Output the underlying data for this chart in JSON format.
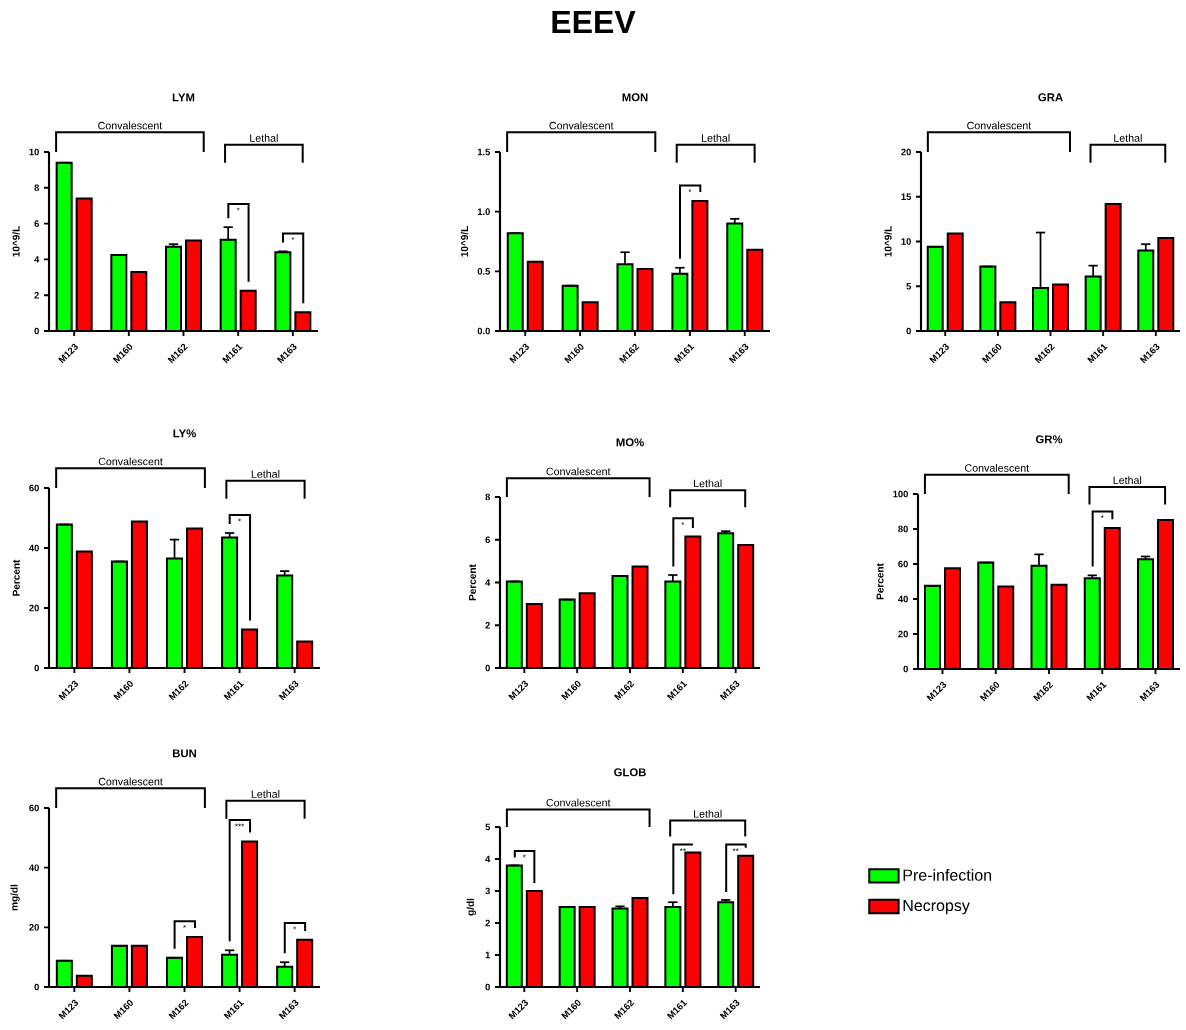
{
  "chart_data": [
    {
      "type": "other",
      "title": "EEEV"
    },
    {
      "type": "bar",
      "title": "LYM",
      "ylabel": "10^9/L",
      "categories": [
        "M123",
        "M160",
        "M162",
        "M161",
        "M163"
      ],
      "ylim": [
        0,
        10
      ],
      "yticks": [
        0,
        2,
        4,
        6,
        8,
        10
      ],
      "series": [
        {
          "color": "#00ff00",
          "values": [
            9.4,
            4.25,
            4.7,
            5.1,
            4.4
          ],
          "errors": [
            null,
            null,
            0.15,
            0.7,
            0.05
          ]
        },
        {
          "color": "#ff0000",
          "values": [
            7.4,
            3.3,
            5.05,
            2.25,
            1.05
          ]
        }
      ],
      "annotations": [
        "Convalescent",
        "Lethal",
        "*",
        "*"
      ]
    },
    {
      "type": "bar",
      "title": "MON",
      "ylabel": "10^9/L",
      "categories": [
        "M123",
        "M160",
        "M162",
        "M161",
        "M163"
      ],
      "ylim": [
        0,
        1.5
      ],
      "yticks": [
        {
          "value": 0,
          "label": "0.0"
        },
        {
          "value": 0.5,
          "label": "0.5"
        },
        {
          "value": 1,
          "label": "1.0"
        },
        {
          "value": 1.5,
          "label": "1.5"
        }
      ],
      "series": [
        {
          "color": "#00ff00",
          "values": [
            0.82,
            0.38,
            0.56,
            0.48,
            0.9
          ],
          "errors": [
            null,
            null,
            0.1,
            0.05,
            0.04
          ]
        },
        {
          "color": "#ff0000",
          "values": [
            0.58,
            0.24,
            0.52,
            1.09,
            0.68
          ]
        }
      ],
      "annotations": [
        "Convalescent",
        "Lethal",
        "*"
      ]
    },
    {
      "type": "bar",
      "title": "GRA",
      "ylabel": "10^9/L",
      "categories": [
        "M123",
        "M160",
        "M162",
        "M161",
        "M163"
      ],
      "ylim": [
        0,
        20
      ],
      "yticks": [
        0,
        5,
        10,
        15,
        20
      ],
      "series": [
        {
          "color": "#00ff00",
          "values": [
            9.4,
            7.2,
            4.8,
            6.1,
            9.0
          ],
          "errors": [
            null,
            null,
            6.2,
            1.2,
            0.7
          ]
        },
        {
          "color": "#ff0000",
          "values": [
            10.9,
            3.2,
            5.2,
            14.2,
            10.4
          ]
        }
      ],
      "annotations": [
        "Convalescent",
        "Lethal"
      ]
    },
    {
      "type": "bar",
      "title": "LY%",
      "ylabel": "Percent",
      "categories": [
        "M123",
        "M160",
        "M162",
        "M161",
        "M163"
      ],
      "ylim": [
        0,
        60
      ],
      "yticks": [
        0,
        20,
        40,
        60
      ],
      "series": [
        {
          "color": "#00ff00",
          "values": [
            47.8,
            35.5,
            36.5,
            43.5,
            30.8
          ],
          "errors": [
            null,
            null,
            6.3,
            1.5,
            1.5
          ]
        },
        {
          "color": "#ff0000",
          "values": [
            38.8,
            48.8,
            46.5,
            12.8,
            8.8
          ]
        }
      ],
      "annotations": [
        "Convalescent",
        "Lethal",
        "*"
      ]
    },
    {
      "type": "bar",
      "title": "MO%",
      "ylabel": "Percent",
      "categories": [
        "M123",
        "M160",
        "M162",
        "M161",
        "M163"
      ],
      "ylim": [
        0,
        8
      ],
      "yticks": [
        0,
        2,
        4,
        6,
        8
      ],
      "series": [
        {
          "color": "#00ff00",
          "values": [
            4.05,
            3.2,
            4.3,
            4.05,
            6.3
          ],
          "errors": [
            null,
            null,
            null,
            0.3,
            0.1
          ]
        },
        {
          "color": "#ff0000",
          "values": [
            3.0,
            3.5,
            4.75,
            6.15,
            5.75
          ]
        }
      ],
      "annotations": [
        "Convalescent",
        "Lethal",
        "*"
      ]
    },
    {
      "type": "bar",
      "title": "GR%",
      "ylabel": "Percent",
      "categories": [
        "M123",
        "M160",
        "M162",
        "M161",
        "M163"
      ],
      "ylim": [
        0,
        100
      ],
      "yticks": [
        0,
        20,
        40,
        60,
        80,
        100
      ],
      "series": [
        {
          "color": "#00ff00",
          "values": [
            47.5,
            60.8,
            59,
            51.8,
            62.7
          ],
          "errors": [
            null,
            null,
            6.5,
            1.7,
            1.6
          ]
        },
        {
          "color": "#ff0000",
          "values": [
            57.5,
            47.2,
            48.2,
            80.5,
            85.2
          ]
        }
      ],
      "annotations": [
        "Convalescent",
        "Lethal",
        "*"
      ]
    },
    {
      "type": "bar",
      "title": "BUN",
      "ylabel": "mg/dl",
      "categories": [
        "M123",
        "M160",
        "M162",
        "M161",
        "M163"
      ],
      "ylim": [
        0,
        60
      ],
      "yticks": [
        0,
        20,
        40,
        60
      ],
      "series": [
        {
          "color": "#00ff00",
          "values": [
            8.8,
            13.8,
            9.8,
            10.8,
            6.8
          ],
          "errors": [
            null,
            null,
            null,
            1.5,
            1.5
          ]
        },
        {
          "color": "#ff0000",
          "values": [
            3.8,
            13.8,
            16.8,
            48.8,
            15.8
          ]
        }
      ],
      "annotations": [
        "Convalescent",
        "Lethal",
        "*",
        "***",
        "*"
      ]
    },
    {
      "type": "bar",
      "title": "GLOB",
      "ylabel": "g/dl",
      "categories": [
        "M123",
        "M160",
        "M162",
        "M161",
        "M163"
      ],
      "ylim": [
        0,
        5
      ],
      "yticks": [
        0,
        1,
        2,
        3,
        4,
        5
      ],
      "legend": "right",
      "series": [
        {
          "name": "Pre-infection",
          "color": "#00ff00",
          "values": [
            3.8,
            2.5,
            2.45,
            2.5,
            2.65
          ],
          "errors": [
            null,
            null,
            0.07,
            0.15,
            0.07
          ]
        },
        {
          "name": "Necropsy",
          "color": "#ff0000",
          "values": [
            3.0,
            2.5,
            2.78,
            4.2,
            4.1
          ]
        }
      ],
      "annotations": [
        "Convalescent",
        "Lethal",
        "*",
        "**",
        "**"
      ]
    }
  ]
}
